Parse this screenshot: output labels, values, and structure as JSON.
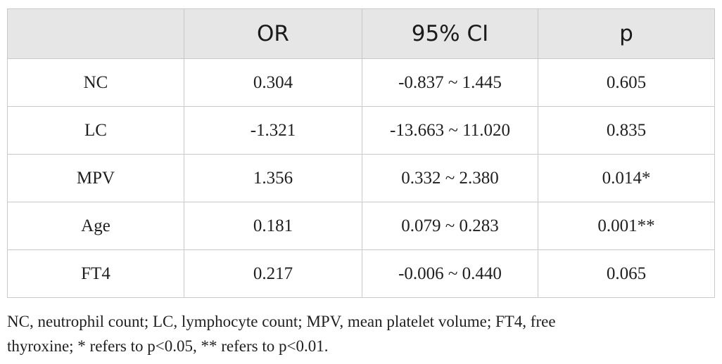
{
  "table": {
    "headers": [
      "",
      "OR",
      "95% CI",
      "p"
    ],
    "rows": [
      [
        "NC",
        "0.304",
        "-0.837 ~ 1.445",
        "0.605"
      ],
      [
        "LC",
        "-1.321",
        "-13.663 ~ 11.020",
        "0.835"
      ],
      [
        "MPV",
        "1.356",
        "0.332 ~ 2.380",
        "0.014*"
      ],
      [
        "Age",
        "0.181",
        "0.079 ~ 0.283",
        "0.001**"
      ],
      [
        "FT4",
        "0.217",
        "-0.006 ~ 0.440",
        "0.065"
      ]
    ]
  },
  "footnote": {
    "line1": "NC, neutrophil count; LC, lymphocyte count; MPV, mean platelet volume; FT4, free",
    "line2": "thyroxine; * refers to p<0.05, ** refers to p<0.01."
  },
  "colors": {
    "header_bg": "#e6e6e6",
    "border": "#c9c9c9",
    "text": "#1f1f1f"
  }
}
